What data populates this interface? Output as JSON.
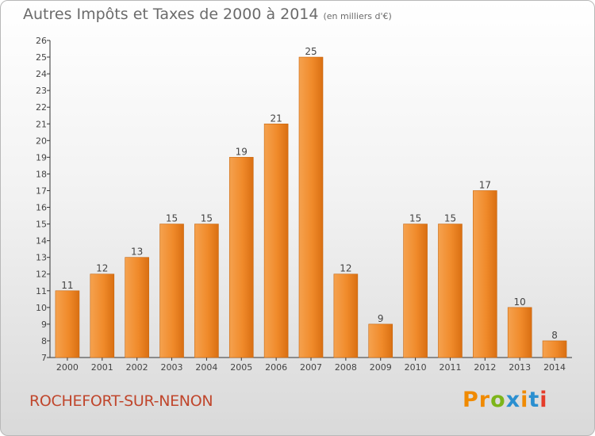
{
  "header": {
    "title": "Autres Impôts et Taxes de 2000 à 2014",
    "unit": "(en milliers d'€)"
  },
  "footer": {
    "place": "ROCHEFORT-SUR-NENON",
    "logo": "Proxiti",
    "logo_colors": [
      "#f08a00",
      "#f08a00",
      "#7db51a",
      "#2a8fd0",
      "#f08a00",
      "#2a8fd0",
      "#e53c2a"
    ]
  },
  "chart_data": {
    "type": "bar",
    "categories": [
      "2000",
      "2001",
      "2002",
      "2003",
      "2004",
      "2005",
      "2006",
      "2007",
      "2008",
      "2009",
      "2010",
      "2011",
      "2012",
      "2013",
      "2014"
    ],
    "values": [
      11,
      12,
      13,
      15,
      15,
      19,
      21,
      25,
      12,
      9,
      15,
      15,
      17,
      10,
      8
    ],
    "ylim": [
      7,
      26
    ],
    "yticks": [
      7,
      8,
      9,
      10,
      11,
      12,
      13,
      14,
      15,
      16,
      17,
      18,
      19,
      20,
      21,
      22,
      23,
      24,
      25,
      26
    ],
    "bar_color": "#f08a2a",
    "data_labels": true,
    "grid": false
  }
}
